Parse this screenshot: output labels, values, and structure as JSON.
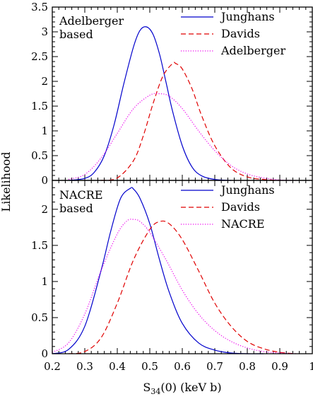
{
  "chart_data": [
    {
      "type": "line",
      "panel_label": [
        "Adelberger",
        "based"
      ],
      "ylabel": "Likelihood",
      "xlim": [
        0.2,
        1.0
      ],
      "ylim": [
        0,
        3.5
      ],
      "y_ticks": [
        "0",
        "0.5",
        "1",
        "1.5",
        "2",
        "2.5",
        "3",
        "3.5"
      ],
      "legend_position": "top-right",
      "series": [
        {
          "name": "Junghans",
          "color": "#0000cc",
          "style": "solid",
          "x": [
            0.25,
            0.3,
            0.33,
            0.36,
            0.39,
            0.42,
            0.45,
            0.47,
            0.49,
            0.51,
            0.53,
            0.55,
            0.57,
            0.6,
            0.63,
            0.66,
            0.7,
            0.75
          ],
          "y": [
            0.0,
            0.04,
            0.17,
            0.5,
            1.12,
            1.95,
            2.7,
            3.03,
            3.1,
            2.95,
            2.55,
            1.98,
            1.4,
            0.7,
            0.27,
            0.09,
            0.02,
            0.0
          ]
        },
        {
          "name": "Davids",
          "color": "#e00000",
          "style": "dashed",
          "x": [
            0.35,
            0.4,
            0.45,
            0.48,
            0.51,
            0.54,
            0.57,
            0.58,
            0.6,
            0.63,
            0.66,
            0.7,
            0.75,
            0.8,
            0.85,
            0.9
          ],
          "y": [
            0.0,
            0.05,
            0.4,
            0.9,
            1.55,
            2.1,
            2.36,
            2.36,
            2.25,
            1.85,
            1.3,
            0.7,
            0.25,
            0.07,
            0.02,
            0.0
          ]
        },
        {
          "name": "Adelberger",
          "color": "#ee00ee",
          "style": "dotted",
          "x": [
            0.25,
            0.3,
            0.35,
            0.4,
            0.45,
            0.5,
            0.53,
            0.56,
            0.6,
            0.65,
            0.7,
            0.75,
            0.8,
            0.85,
            0.9,
            0.95
          ],
          "y": [
            0.02,
            0.12,
            0.45,
            0.95,
            1.45,
            1.72,
            1.75,
            1.7,
            1.45,
            1.0,
            0.6,
            0.3,
            0.13,
            0.05,
            0.01,
            0.0
          ]
        }
      ]
    },
    {
      "type": "line",
      "panel_label": [
        "NACRE",
        "based"
      ],
      "xlabel": "S34(0)  (keV b)",
      "xlabel_parts": [
        "S",
        "34",
        "(0)  (keV b)"
      ],
      "ylabel": "Likelihood",
      "xlim": [
        0.2,
        1.0
      ],
      "ylim": [
        0,
        2.4
      ],
      "x_ticks": [
        "0.2",
        "0.3",
        "0.4",
        "0.5",
        "0.6",
        "0.7",
        "0.8",
        "0.9",
        "1"
      ],
      "y_ticks": [
        "0",
        "0.5",
        "1",
        "1.5",
        "2"
      ],
      "legend_position": "top-right",
      "series": [
        {
          "name": "Junghans",
          "color": "#0000cc",
          "style": "solid",
          "x": [
            0.2,
            0.25,
            0.3,
            0.35,
            0.38,
            0.41,
            0.44,
            0.45,
            0.47,
            0.5,
            0.53,
            0.56,
            0.6,
            0.65,
            0.7,
            0.75,
            0.8,
            0.85
          ],
          "y": [
            0.0,
            0.06,
            0.38,
            1.15,
            1.7,
            2.15,
            2.29,
            2.28,
            2.15,
            1.8,
            1.3,
            0.85,
            0.42,
            0.15,
            0.05,
            0.01,
            0.0,
            0.0
          ]
        },
        {
          "name": "Davids",
          "color": "#e00000",
          "style": "dashed",
          "x": [
            0.25,
            0.3,
            0.35,
            0.4,
            0.45,
            0.5,
            0.53,
            0.56,
            0.6,
            0.65,
            0.7,
            0.75,
            0.8,
            0.85,
            0.9,
            0.95
          ],
          "y": [
            0.0,
            0.03,
            0.22,
            0.7,
            1.3,
            1.72,
            1.83,
            1.8,
            1.58,
            1.15,
            0.7,
            0.38,
            0.17,
            0.07,
            0.02,
            0.0
          ]
        },
        {
          "name": "NACRE",
          "color": "#ee00ee",
          "style": "dotted",
          "x": [
            0.2,
            0.25,
            0.3,
            0.35,
            0.4,
            0.43,
            0.45,
            0.47,
            0.5,
            0.55,
            0.6,
            0.65,
            0.7,
            0.75,
            0.8,
            0.85,
            0.9,
            0.95
          ],
          "y": [
            0.02,
            0.15,
            0.55,
            1.15,
            1.66,
            1.84,
            1.86,
            1.83,
            1.68,
            1.3,
            0.88,
            0.55,
            0.32,
            0.17,
            0.08,
            0.03,
            0.01,
            0.0
          ]
        }
      ]
    }
  ]
}
